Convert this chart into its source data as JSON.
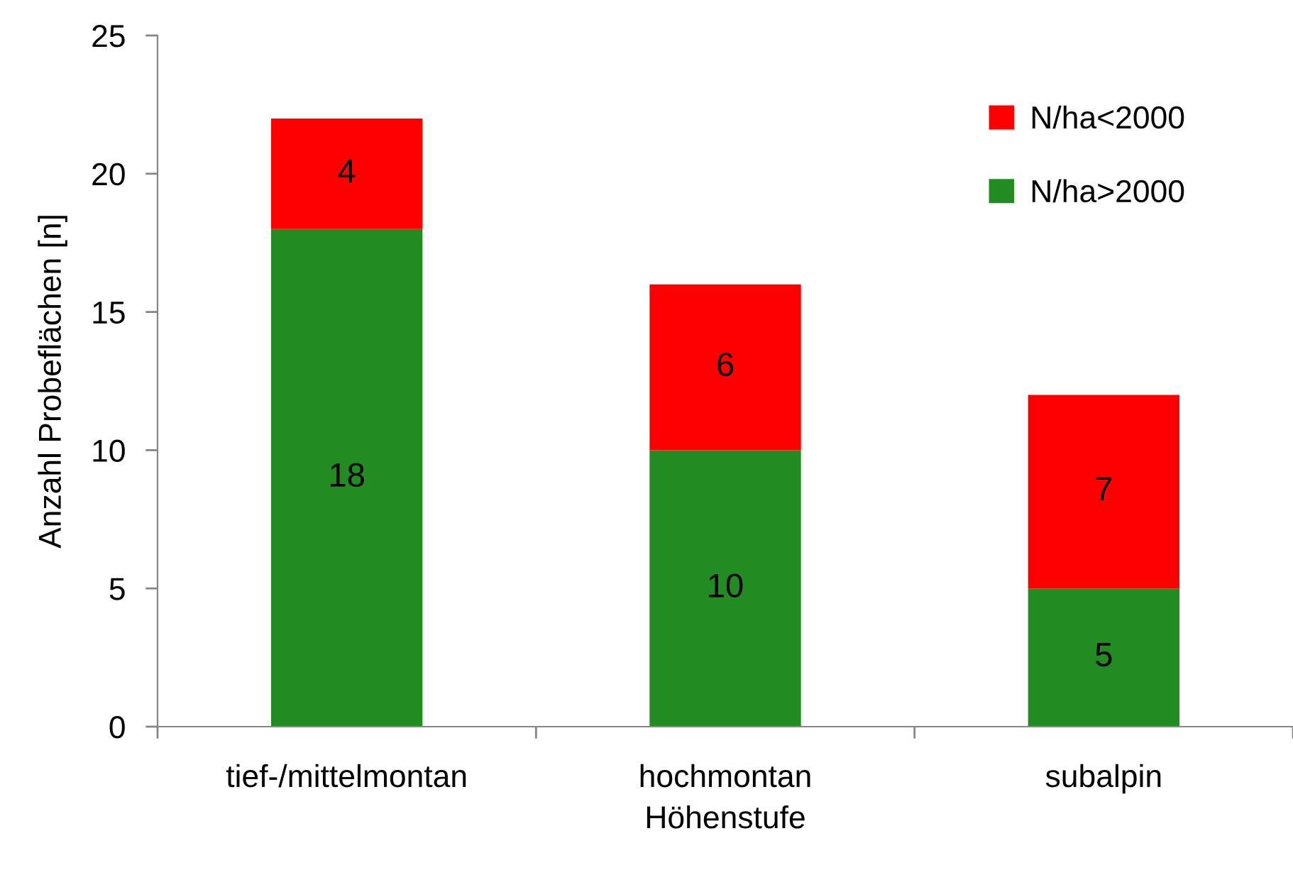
{
  "chart_data": {
    "type": "bar",
    "stacked": true,
    "xlabel": "Höhenstufe",
    "ylabel": "Anzahl Probeflächen [n]",
    "categories": [
      "tief-/mittelmontan",
      "hochmontan",
      "subalpin"
    ],
    "series": [
      {
        "name": "N/ha>2000",
        "color": "#228b22",
        "values": [
          18,
          10,
          5
        ]
      },
      {
        "name": "N/ha<2000",
        "color": "#ff0000",
        "values": [
          4,
          6,
          7
        ]
      }
    ],
    "ylim": [
      0,
      25
    ],
    "yticks": [
      0,
      5,
      10,
      15,
      20,
      25
    ],
    "grid": false,
    "legend": "top right",
    "data_labels": true
  }
}
